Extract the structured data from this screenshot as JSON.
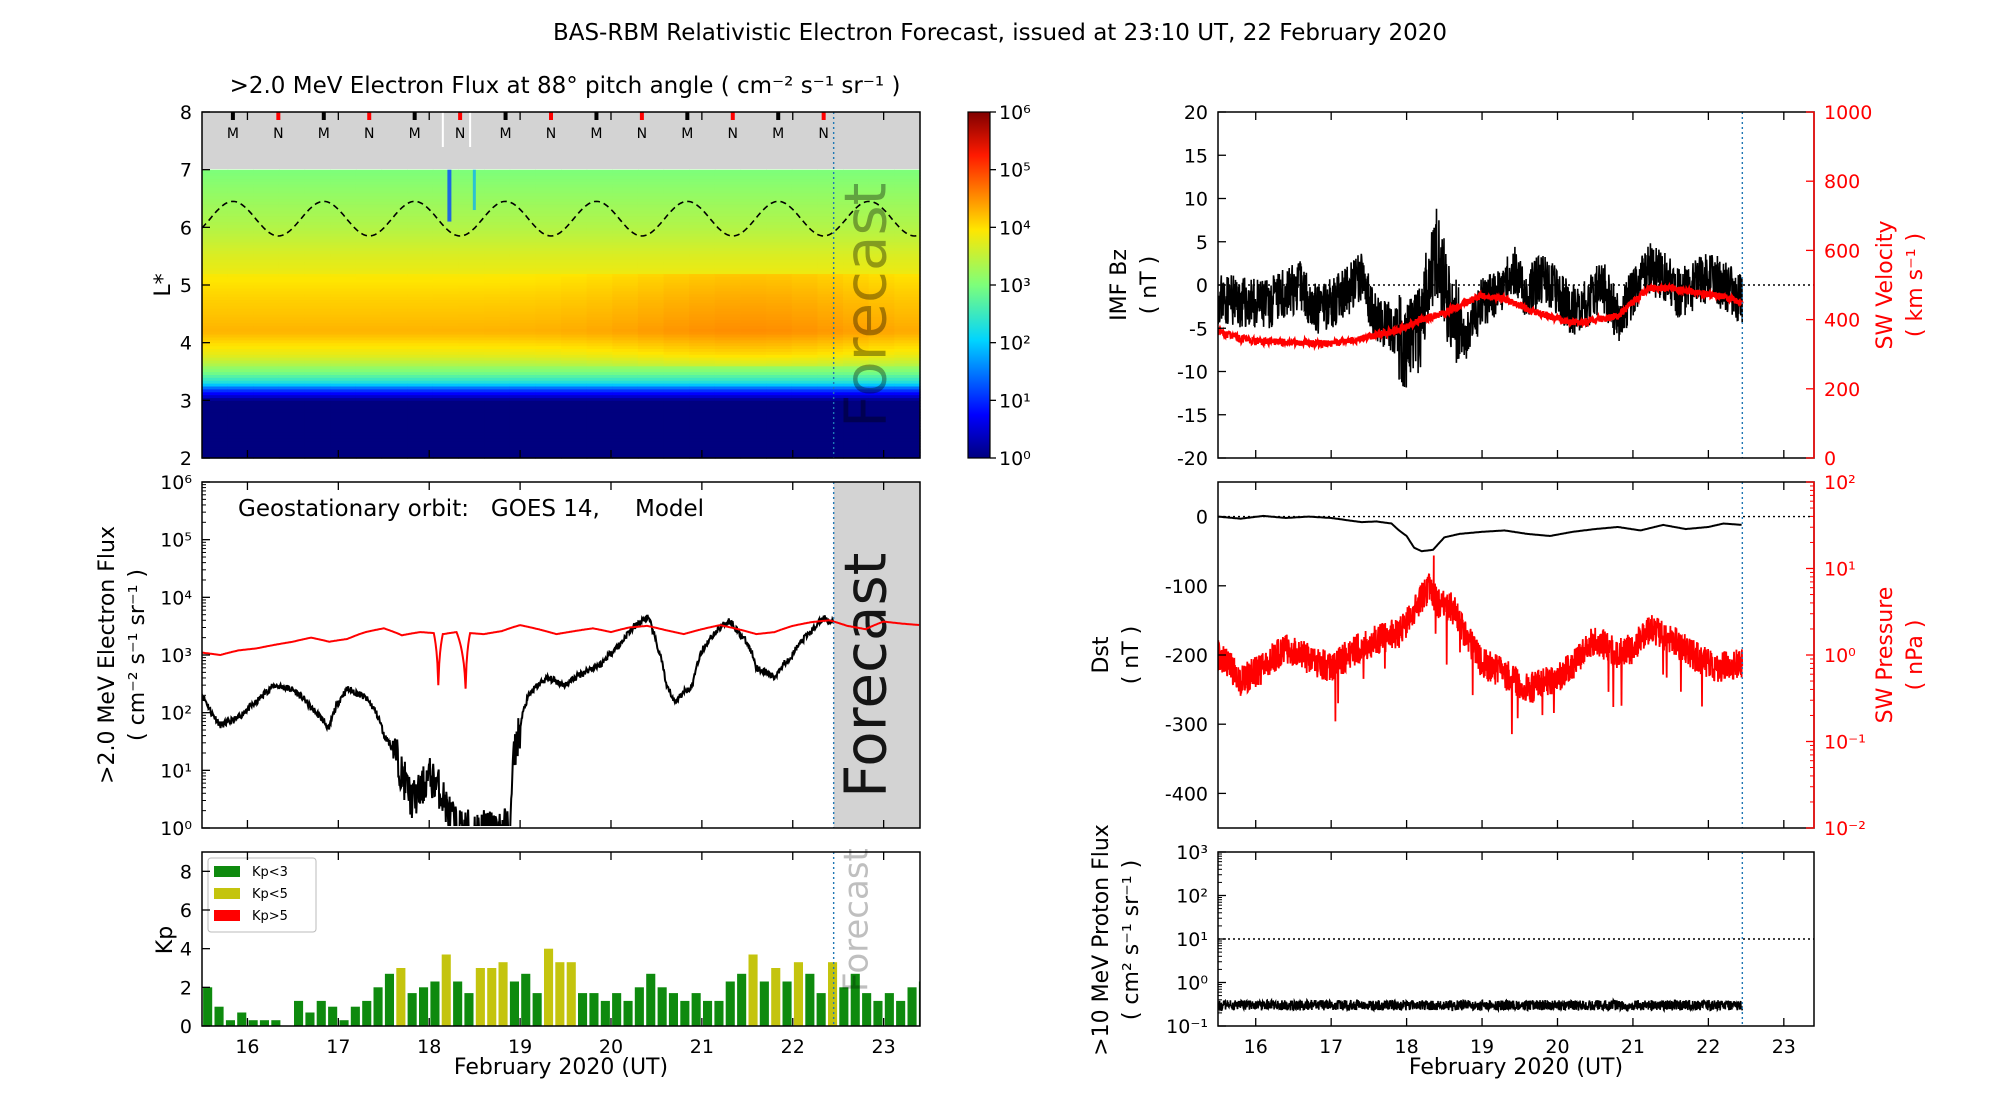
{
  "figure": {
    "title": "BAS-RBM Relativistic Electron Forecast, issued at 23:10 UT, 22 February 2020",
    "forecast_label": "Forecast"
  },
  "colors": {
    "model_red": "#ff0000",
    "obs_black": "#000000",
    "kp_low": "#0e8a0e",
    "kp_mid": "#c4c40e",
    "kp_high": "#ff0000",
    "forecast_shade": "#d3d3d3",
    "forecast_line": "#1f77b4"
  },
  "chart_data": [
    {
      "id": "flux_map",
      "type": "heatmap",
      "title": ">2.0 MeV Electron Flux at 88° pitch angle ( cm⁻² s⁻¹ sr⁻¹ )",
      "ylabel": "L*",
      "ylim": [
        2,
        8
      ],
      "yticks": [
        2,
        3,
        4,
        5,
        6,
        7,
        8
      ],
      "x_days": [
        15.5,
        23.4
      ],
      "xticks": [
        16,
        17,
        18,
        19,
        20,
        21,
        22,
        23
      ],
      "forecast_start": 22.45,
      "colorbar": {
        "scale": "log",
        "range": [
          1,
          1000000
        ],
        "ticks": [
          "10⁰",
          "10¹",
          "10²",
          "10³",
          "10⁴",
          "10⁵",
          "10⁶"
        ]
      },
      "profile_L": [
        2.0,
        3.0,
        3.2,
        3.3,
        3.5,
        3.8,
        4.2,
        4.8,
        5.5,
        6.0,
        6.5,
        7.0
      ],
      "profile_log_flux": [
        0.0,
        0.0,
        1.2,
        2.2,
        3.0,
        3.7,
        4.2,
        4.0,
        3.7,
        3.4,
        3.2,
        3.0
      ],
      "plasmapause_mean": 6.15,
      "plasmapause_amplitude": 0.3,
      "mn_markers": [
        "M",
        "N",
        "M",
        "N",
        "M",
        "N",
        "M",
        "N",
        "M",
        "N",
        "M",
        "N",
        "M",
        "N"
      ],
      "mn_marker_days": [
        15.84,
        16.34,
        16.84,
        17.34,
        17.84,
        18.34,
        18.84,
        19.34,
        19.84,
        20.34,
        20.84,
        21.34,
        21.84,
        22.34
      ]
    },
    {
      "id": "geo_flux",
      "type": "line",
      "ylabel_line1": ">2.0 MeV Electron Flux",
      "ylabel_line2": "( cm⁻² s⁻¹ sr⁻¹ )",
      "legend_text": "Geostationary orbit:   GOES 14,",
      "legend_model": "Model",
      "yscale": "log",
      "ylim": [
        1,
        1000000
      ],
      "yticks": [
        "10⁰",
        "10¹",
        "10²",
        "10³",
        "10⁴",
        "10⁵",
        "10⁶"
      ],
      "series": [
        {
          "name": "GOES 14",
          "x": [
            15.5,
            15.6,
            15.7,
            15.9,
            16.1,
            16.3,
            16.5,
            16.7,
            16.9,
            17.0,
            17.1,
            17.3,
            17.5,
            17.7,
            17.8,
            17.9,
            18.0,
            18.1,
            18.2,
            18.3,
            18.5,
            18.7,
            18.9,
            19.0,
            19.1,
            19.3,
            19.5,
            19.7,
            19.9,
            20.1,
            20.3,
            20.4,
            20.5,
            20.6,
            20.7,
            20.9,
            21.1,
            21.3,
            21.4,
            21.6,
            21.8,
            22.0,
            22.2,
            22.35,
            22.45
          ],
          "y": [
            200,
            100,
            60,
            80,
            150,
            300,
            250,
            120,
            50,
            150,
            260,
            180,
            40,
            8,
            3,
            4,
            8,
            5,
            2,
            1,
            1,
            1,
            1,
            50,
            200,
            400,
            300,
            500,
            700,
            1500,
            3500,
            4500,
            1500,
            300,
            150,
            300,
            2000,
            4000,
            2500,
            600,
            400,
            1000,
            2500,
            4500,
            3500
          ]
        },
        {
          "name": "Model",
          "x": [
            15.5,
            15.7,
            15.9,
            16.1,
            16.3,
            16.5,
            16.7,
            16.9,
            17.1,
            17.3,
            17.5,
            17.7,
            17.9,
            18.05,
            18.1,
            18.15,
            18.3,
            18.4,
            18.45,
            18.6,
            18.8,
            19.0,
            19.2,
            19.4,
            19.6,
            19.8,
            20.0,
            20.2,
            20.4,
            20.6,
            20.8,
            21.0,
            21.2,
            21.4,
            21.6,
            21.8,
            22.0,
            22.2,
            22.4,
            22.6,
            22.8,
            23.0,
            23.2,
            23.4
          ],
          "y": [
            1100,
            1000,
            1200,
            1300,
            1500,
            1700,
            2000,
            1700,
            1900,
            2500,
            2900,
            2200,
            2500,
            2400,
            300,
            2300,
            2500,
            260,
            2400,
            2300,
            2600,
            3300,
            2800,
            2300,
            2600,
            2900,
            2500,
            3000,
            3200,
            2700,
            2300,
            2800,
            3300,
            2800,
            2300,
            2500,
            3200,
            3700,
            4000,
            3200,
            2800,
            3800,
            3500,
            3300
          ]
        }
      ]
    },
    {
      "id": "kp",
      "type": "bar",
      "ylabel": "Kp",
      "ylim": [
        0,
        9
      ],
      "yticks": [
        0,
        2,
        4,
        6,
        8
      ],
      "legend": [
        "Kp<3",
        "Kp<5",
        "Kp>5"
      ],
      "bar_start_day": 15.5,
      "bar_width_days": 0.125,
      "values": [
        2.0,
        1.0,
        0.3,
        0.7,
        0.3,
        0.3,
        0.3,
        0.0,
        1.3,
        0.7,
        1.3,
        1.0,
        0.3,
        1.0,
        1.3,
        2.0,
        2.7,
        3.0,
        1.7,
        2.0,
        2.3,
        3.7,
        2.3,
        1.7,
        3.0,
        3.0,
        3.3,
        2.3,
        2.7,
        1.7,
        4.0,
        3.3,
        3.3,
        1.7,
        1.7,
        1.3,
        1.7,
        1.3,
        2.0,
        2.7,
        2.0,
        1.7,
        1.3,
        1.7,
        1.3,
        1.3,
        2.3,
        2.7,
        3.7,
        2.3,
        3.0,
        2.3,
        3.3,
        2.7,
        1.7,
        3.3,
        2.0,
        2.7,
        1.7,
        1.3,
        1.7,
        1.3,
        2.0,
        2.3,
        2.7,
        2.0,
        2.0,
        2.0,
        2.0,
        2.0,
        2.0,
        2.0,
        2.0
      ],
      "forecast_start_index": 56
    },
    {
      "id": "imf",
      "type": "line",
      "ylabel_left_line1": "IMF Bz",
      "ylabel_left_line2": "( nT )",
      "ylim_left": [
        -20,
        20
      ],
      "yticks_left": [
        -20,
        -15,
        -10,
        -5,
        0,
        5,
        10,
        15,
        20
      ],
      "ylabel_right_line1": "SW Velocity",
      "ylabel_right_line2": "( km s⁻¹ )",
      "ylim_right": [
        0,
        1000
      ],
      "yticks_right": [
        0,
        200,
        400,
        600,
        800,
        1000
      ],
      "series": [
        {
          "name": "IMF Bz",
          "x": [
            15.5,
            15.8,
            16.1,
            16.4,
            16.6,
            16.8,
            17.0,
            17.2,
            17.4,
            17.6,
            17.8,
            18.0,
            18.2,
            18.3,
            18.4,
            18.6,
            18.8,
            19.0,
            19.2,
            19.4,
            19.6,
            19.8,
            20.0,
            20.2,
            20.4,
            20.6,
            20.8,
            21.0,
            21.2,
            21.4,
            21.6,
            21.8,
            22.0,
            22.2,
            22.45
          ],
          "y": [
            -1.5,
            -2,
            -2.5,
            -1,
            0,
            -3,
            -2,
            -1,
            1,
            -4,
            -5,
            -7,
            -5,
            2,
            4,
            -4,
            -6,
            -2,
            -1,
            2,
            -1,
            1,
            -1,
            -3,
            -2,
            0,
            -4,
            -1,
            2,
            1,
            -1,
            0,
            1,
            0,
            -2
          ],
          "noise": 3
        },
        {
          "name": "SW Velocity",
          "x": [
            15.5,
            15.8,
            16.1,
            16.5,
            17.0,
            17.3,
            17.6,
            17.9,
            18.2,
            18.5,
            18.8,
            19.0,
            19.3,
            19.6,
            19.9,
            20.2,
            20.5,
            20.8,
            21.0,
            21.2,
            21.5,
            21.8,
            22.1,
            22.3,
            22.45
          ],
          "y": [
            365,
            345,
            335,
            335,
            330,
            340,
            355,
            370,
            400,
            420,
            450,
            470,
            460,
            430,
            410,
            390,
            400,
            410,
            450,
            490,
            490,
            480,
            470,
            460,
            450
          ],
          "noise": 10
        }
      ]
    },
    {
      "id": "dst",
      "type": "line",
      "ylabel_left_line1": "Dst",
      "ylabel_left_line2": "( nT )",
      "ylim_left": [
        -450,
        50
      ],
      "yticks_left": [
        -400,
        -300,
        -200,
        -100,
        0
      ],
      "ylabel_right_line1": "SW Pressure",
      "ylabel_right_line2": "( nPa )",
      "yscale_right": "log",
      "ylim_right": [
        0.01,
        100
      ],
      "yticks_right": [
        "10⁻²",
        "10⁻¹",
        "10⁰",
        "10¹",
        "10²"
      ],
      "series": [
        {
          "name": "Dst",
          "x": [
            15.5,
            15.8,
            16.1,
            16.4,
            16.7,
            17.0,
            17.2,
            17.4,
            17.6,
            17.8,
            17.9,
            18.0,
            18.1,
            18.2,
            18.35,
            18.5,
            18.7,
            19.0,
            19.3,
            19.6,
            19.9,
            20.2,
            20.5,
            20.8,
            21.1,
            21.4,
            21.7,
            22.0,
            22.2,
            22.45
          ],
          "y": [
            0,
            -3,
            1,
            -2,
            0,
            -2,
            -5,
            -8,
            -7,
            -10,
            -20,
            -28,
            -45,
            -50,
            -48,
            -30,
            -25,
            -22,
            -20,
            -25,
            -28,
            -22,
            -18,
            -15,
            -20,
            -12,
            -18,
            -15,
            -10,
            -12
          ]
        },
        {
          "name": "SW Pressure",
          "x": [
            15.5,
            15.8,
            16.1,
            16.4,
            16.7,
            17.0,
            17.3,
            17.6,
            17.9,
            18.1,
            18.3,
            18.4,
            18.6,
            18.8,
            19.0,
            19.3,
            19.6,
            19.9,
            20.2,
            20.5,
            20.8,
            21.0,
            21.2,
            21.5,
            21.8,
            22.1,
            22.45
          ],
          "y": [
            1.0,
            0.5,
            0.7,
            1.2,
            0.9,
            0.7,
            1.1,
            1.5,
            1.8,
            3.0,
            6.0,
            4.0,
            3.5,
            1.5,
            0.8,
            0.6,
            0.4,
            0.5,
            0.7,
            1.5,
            1.0,
            1.2,
            2.0,
            1.5,
            1.0,
            0.7,
            0.8
          ],
          "noise_log": 0.18
        }
      ]
    },
    {
      "id": "proton",
      "type": "line",
      "ylabel_line1": ">10 MeV Proton Flux",
      "ylabel_line2": "( cm² s⁻¹ sr⁻¹ )",
      "yscale": "log",
      "ylim": [
        0.1,
        1000
      ],
      "yticks": [
        "10⁻¹",
        "10⁰",
        "10¹",
        "10²",
        "10³"
      ],
      "threshold": 10,
      "series": [
        {
          "name": ">10 MeV Proton Flux",
          "x": [
            15.5,
            22.45
          ],
          "y": [
            0.3,
            0.3
          ],
          "noise_log": 0.12
        }
      ]
    }
  ],
  "axes_common": {
    "xlabel": "February 2020 (UT)",
    "xticks": [
      "16",
      "17",
      "18",
      "19",
      "20",
      "21",
      "22",
      "23"
    ],
    "x_range": [
      15.5,
      23.4
    ]
  }
}
